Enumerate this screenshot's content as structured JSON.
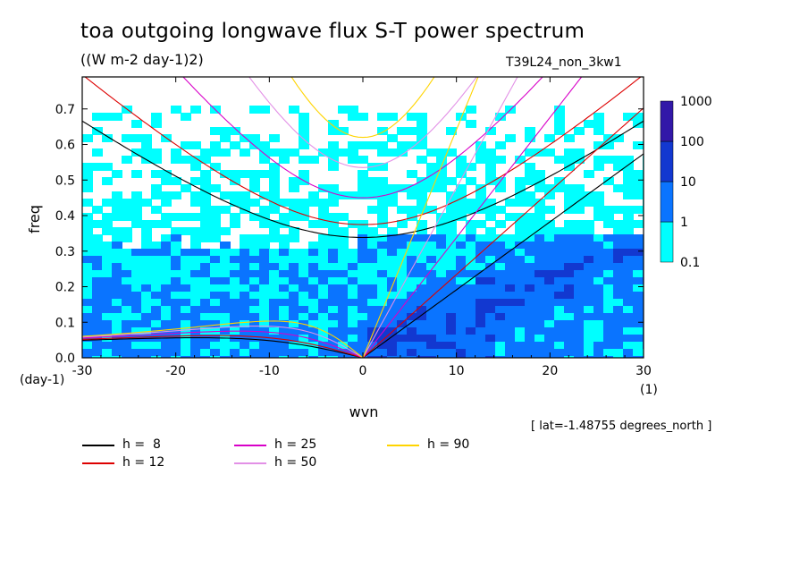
{
  "title": "toa outgoing longwave flux S-T power spectrum",
  "units": "((W m-2 day-1)2)",
  "experiment": "T39L24_non_3kw1",
  "annotation": "[ lat=-1.48755 degrees_north ]",
  "chart_data": {
    "type": "heatmap",
    "xlabel": "wvn",
    "ylabel": "freq",
    "xunits": "(1)",
    "yunits": "(day-1)",
    "xlim": [
      -30,
      30
    ],
    "ylim": [
      0,
      0.79
    ],
    "xticks": [
      -30,
      -20,
      -10,
      0,
      10,
      20,
      30
    ],
    "yticks": [
      0.0,
      0.1,
      0.2,
      0.3,
      0.4,
      0.5,
      0.6,
      0.7
    ],
    "xtick_labels": [
      "-30",
      "-20",
      "-10",
      "0",
      "10",
      "20",
      "30"
    ],
    "ytick_labels": [
      "0.0",
      "0.1",
      "0.2",
      "0.3",
      "0.4",
      "0.5",
      "0.6",
      "0.7"
    ],
    "colorbar": {
      "levels": [
        "0.1",
        "1",
        "10",
        "100",
        "1000"
      ],
      "colors": [
        "#00ffff",
        "#0a74ff",
        "#1238d0",
        "#3218a8"
      ]
    },
    "dispersion_curves": [
      {
        "name": "h =  8",
        "color": "#000000",
        "equivalent_depth_m": 8
      },
      {
        "name": "h = 12",
        "color": "#dd0000",
        "equivalent_depth_m": 12
      },
      {
        "name": "h = 25",
        "color": "#d800c8",
        "equivalent_depth_m": 25
      },
      {
        "name": "h = 50",
        "color": "#e290e6",
        "equivalent_depth_m": 50
      },
      {
        "name": "h = 90",
        "color": "#ffd400",
        "equivalent_depth_m": 90
      }
    ]
  }
}
